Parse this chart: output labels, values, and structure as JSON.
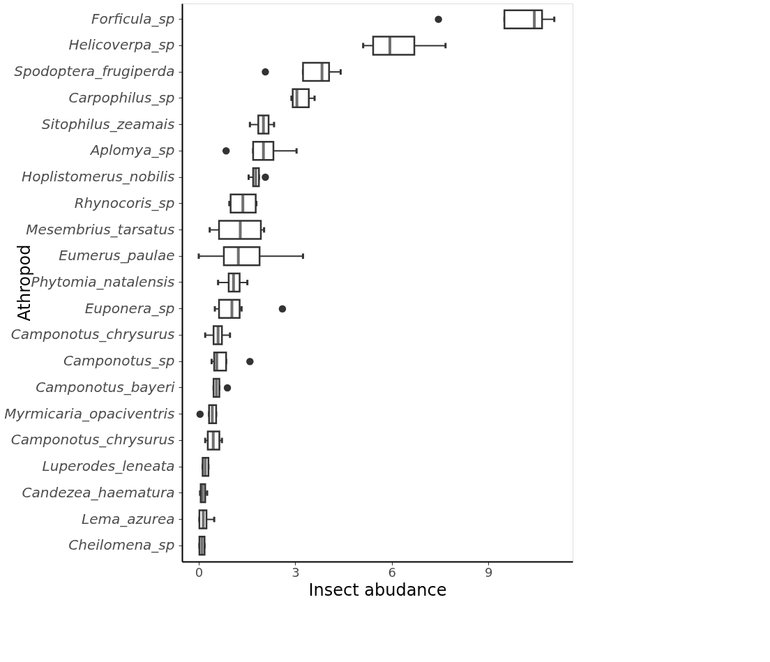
{
  "chart_data": {
    "type": "box",
    "xlabel": "Insect abudance",
    "ylabel": "Athropod",
    "orientation": "horizontal",
    "grid": false,
    "color": "#333333",
    "categories": [
      "Forficula_sp",
      "Helicoverpa_sp",
      "Spodoptera_frugiperda",
      "Carpophilus_sp",
      "Sitophilus_zeamais",
      "Aplomya_sp",
      "Hoplistomerus_nobilis",
      "Rhynocoris_sp",
      "Mesembrius_tarsatus",
      "Eumerus_paulae",
      "Phytomia_natalensis",
      "Euponera_sp",
      "Camponotus_chrysurus",
      "Camponotus_sp",
      "Camponotus_bayeri",
      "Myrmicaria_opaciventris",
      "Camponotus_chrysurus",
      "Luperodes_leneata",
      "Candezea_haematura",
      "Lema_azurea",
      "Cheilomena_sp"
    ],
    "xlim": [
      -0.52,
      11.62
    ],
    "xticks": [
      0,
      3,
      6,
      9
    ],
    "boxes": [
      {
        "low": 9.5,
        "q1": 9.5,
        "median": 10.43,
        "q3": 10.67,
        "high": 11.05,
        "outliers": [
          7.45
        ]
      },
      {
        "low": 5.11,
        "q1": 5.42,
        "median": 5.94,
        "q3": 6.7,
        "high": 7.67
      },
      {
        "low": 3.24,
        "q1": 3.24,
        "median": 3.83,
        "q3": 4.05,
        "high": 4.41,
        "outliers": [
          2.07
        ]
      },
      {
        "low": 2.88,
        "q1": 2.92,
        "median": 3.05,
        "q3": 3.42,
        "high": 3.6
      },
      {
        "low": 1.59,
        "q1": 1.85,
        "median": 2.01,
        "q3": 2.17,
        "high": 2.34
      },
      {
        "low": 1.69,
        "q1": 1.69,
        "median": 2.01,
        "q3": 2.32,
        "high": 3.04,
        "outliers": [
          0.85
        ]
      },
      {
        "low": 1.55,
        "q1": 1.69,
        "median": 1.77,
        "q3": 1.87,
        "high": 1.87,
        "outliers": [
          2.07
        ]
      },
      {
        "low": 0.95,
        "q1": 0.99,
        "median": 1.37,
        "q3": 1.77,
        "high": 1.79
      },
      {
        "low": 0.34,
        "q1": 0.63,
        "median": 1.29,
        "q3": 1.93,
        "high": 2.03
      },
      {
        "low": 0.0,
        "q1": 0.78,
        "median": 1.23,
        "q3": 1.89,
        "high": 3.24
      },
      {
        "low": 0.6,
        "q1": 0.93,
        "median": 1.08,
        "q3": 1.27,
        "high": 1.51
      },
      {
        "low": 0.5,
        "q1": 0.63,
        "median": 1.03,
        "q3": 1.27,
        "high": 1.33,
        "outliers": [
          2.6
        ]
      },
      {
        "low": 0.2,
        "q1": 0.46,
        "median": 0.6,
        "q3": 0.72,
        "high": 0.97
      },
      {
        "low": 0.4,
        "q1": 0.48,
        "median": 0.56,
        "q3": 0.85,
        "high": 0.85,
        "outliers": [
          1.59
        ]
      },
      {
        "low": 0.46,
        "q1": 0.46,
        "median": 0.55,
        "q3": 0.64,
        "high": 0.64,
        "outliers": [
          0.89
        ]
      },
      {
        "low": 0.32,
        "q1": 0.32,
        "median": 0.42,
        "q3": 0.54,
        "high": 0.54,
        "outliers": [
          0.04
        ]
      },
      {
        "low": 0.2,
        "q1": 0.28,
        "median": 0.45,
        "q3": 0.64,
        "high": 0.72
      },
      {
        "low": 0.12,
        "q1": 0.12,
        "median": 0.2,
        "q3": 0.3,
        "high": 0.3
      },
      {
        "low": 0.04,
        "q1": 0.06,
        "median": 0.12,
        "q3": 0.2,
        "high": 0.26
      },
      {
        "low": 0.02,
        "q1": 0.02,
        "median": 0.14,
        "q3": 0.24,
        "high": 0.48
      },
      {
        "low": 0.02,
        "q1": 0.02,
        "median": 0.1,
        "q3": 0.18,
        "high": 0.18
      }
    ]
  }
}
